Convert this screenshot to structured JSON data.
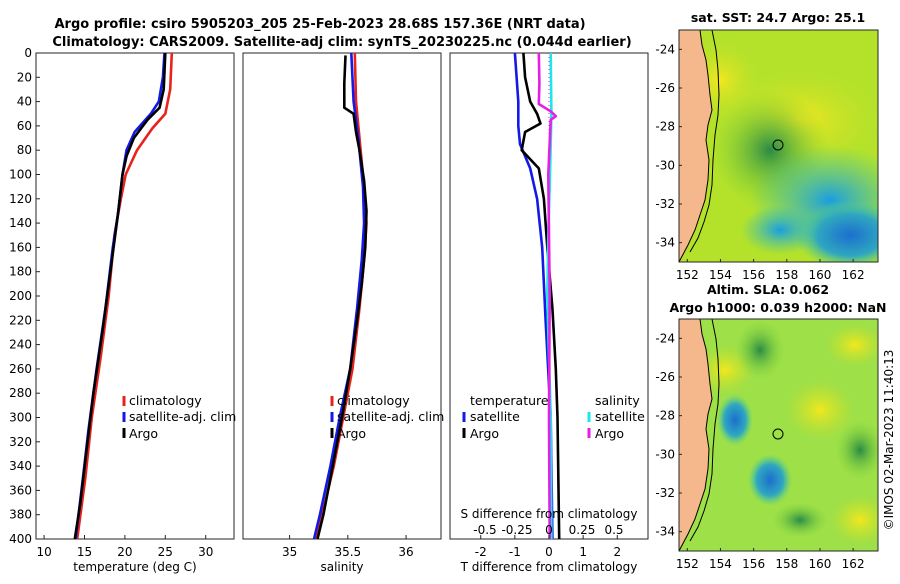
{
  "header": {
    "line1": "Argo profile: csiro 5905203_205 25-Feb-2023 28.68S 157.36E (NRT data)",
    "line2": "Climatology: CARS2009. Satellite-adj clim: synTS_20230225.nc (0.044d earlier)"
  },
  "watermark": "©IMOS 02-Mar-2023 11:40:13",
  "colors": {
    "climatology": "#e8231e",
    "satellite": "#1419e6",
    "argo": "#000000",
    "sat_salinity": "#1ee6e6",
    "argo_salinity": "#e61ee6"
  },
  "chart_data": [
    {
      "type": "line",
      "title": "",
      "xlabel": "temperature (deg C)",
      "ylabel": "depth",
      "xlim": [
        9,
        33.5
      ],
      "ylim": [
        0,
        400
      ],
      "xticks": [
        10,
        15,
        20,
        25,
        30
      ],
      "yticks": [
        0,
        20,
        40,
        60,
        80,
        100,
        120,
        140,
        160,
        180,
        200,
        220,
        240,
        260,
        280,
        300,
        320,
        340,
        360,
        380,
        400
      ],
      "legend": [
        "climatology",
        "satellite-adj. clim",
        "Argo"
      ],
      "series": [
        {
          "name": "climatology",
          "color": "#e8231e",
          "points": [
            [
              25.8,
              0
            ],
            [
              25.6,
              30
            ],
            [
              25,
              50
            ],
            [
              23.4,
              62
            ],
            [
              21.5,
              80
            ],
            [
              20.1,
              100
            ],
            [
              19.5,
              120
            ],
            [
              18.7,
              150
            ],
            [
              18,
              200
            ],
            [
              17,
              250
            ],
            [
              15.9,
              300
            ],
            [
              15.1,
              350
            ],
            [
              14.1,
              400
            ]
          ]
        },
        {
          "name": "satellite-adj. clim",
          "color": "#1419e6",
          "points": [
            [
              24.9,
              0
            ],
            [
              24.7,
              20
            ],
            [
              24.2,
              40
            ],
            [
              23.2,
              50
            ],
            [
              21.2,
              65
            ],
            [
              20.2,
              80
            ],
            [
              19.7,
              100
            ],
            [
              19.2,
              130
            ],
            [
              18.5,
              160
            ],
            [
              17.6,
              210
            ],
            [
              16.5,
              260
            ],
            [
              15.5,
              310
            ],
            [
              14.8,
              350
            ],
            [
              13.9,
              400
            ]
          ]
        },
        {
          "name": "Argo",
          "color": "#000000",
          "points": [
            [
              25,
              0
            ],
            [
              24.8,
              30
            ],
            [
              24.3,
              45
            ],
            [
              22.8,
              55
            ],
            [
              21.1,
              70
            ],
            [
              20.2,
              85
            ],
            [
              19.7,
              100
            ],
            [
              19.1,
              135
            ],
            [
              18.3,
              175
            ],
            [
              17.2,
              230
            ],
            [
              16.1,
              280
            ],
            [
              15.2,
              330
            ],
            [
              14.5,
              370
            ],
            [
              13.8,
              400
            ]
          ]
        }
      ]
    },
    {
      "type": "line",
      "title": "",
      "xlabel": "salinity",
      "ylabel": "depth",
      "xlim": [
        34.6,
        36.3
      ],
      "ylim": [
        0,
        400
      ],
      "xticks": [
        35,
        35.5,
        36
      ],
      "legend": [
        "climatology",
        "satellite-adj. clim",
        "Argo"
      ],
      "series": [
        {
          "name": "climatology",
          "color": "#e8231e",
          "points": [
            [
              35.56,
              0
            ],
            [
              35.57,
              40
            ],
            [
              35.6,
              70
            ],
            [
              35.64,
              110
            ],
            [
              35.66,
              140
            ],
            [
              35.64,
              170
            ],
            [
              35.6,
              210
            ],
            [
              35.54,
              260
            ],
            [
              35.46,
              300
            ],
            [
              35.38,
              340
            ],
            [
              35.28,
              380
            ],
            [
              35.23,
              400
            ]
          ]
        },
        {
          "name": "satellite-adj. clim",
          "color": "#1419e6",
          "points": [
            [
              35.53,
              0
            ],
            [
              35.55,
              40
            ],
            [
              35.59,
              70
            ],
            [
              35.63,
              110
            ],
            [
              35.64,
              140
            ],
            [
              35.62,
              170
            ],
            [
              35.58,
              210
            ],
            [
              35.52,
              260
            ],
            [
              35.43,
              300
            ],
            [
              35.35,
              340
            ],
            [
              35.26,
              380
            ],
            [
              35.21,
              400
            ]
          ]
        },
        {
          "name": "Argo",
          "color": "#000000",
          "points": [
            [
              35.48,
              2
            ],
            [
              35.47,
              25
            ],
            [
              35.47,
              45
            ],
            [
              35.55,
              50
            ],
            [
              35.57,
              65
            ],
            [
              35.6,
              80
            ],
            [
              35.64,
              105
            ],
            [
              35.66,
              130
            ],
            [
              35.65,
              160
            ],
            [
              35.62,
              190
            ],
            [
              35.58,
              220
            ],
            [
              35.52,
              260
            ],
            [
              35.45,
              300
            ],
            [
              35.37,
              340
            ],
            [
              35.29,
              380
            ],
            [
              35.24,
              400
            ]
          ]
        }
      ]
    },
    {
      "type": "line",
      "title": "",
      "xlabel": "T difference from climatology",
      "xlabel2": "S difference from climatology",
      "ylabel": "depth",
      "xlim": [
        -2.9,
        2.9
      ],
      "ylim": [
        0,
        400
      ],
      "xticks": [
        -2,
        -1,
        0,
        1,
        2
      ],
      "top_ticks": [
        "-0.5",
        "-0.25",
        "0",
        "0.25",
        "0.5"
      ],
      "legend_group_titles": [
        "temperature",
        "salinity"
      ],
      "legend": [
        "satellite",
        "Argo",
        "satellite",
        "Argo"
      ],
      "series": [
        {
          "name": "temperature satellite",
          "color": "#1419e6",
          "points": [
            [
              -1,
              0
            ],
            [
              -0.95,
              20
            ],
            [
              -0.9,
              40
            ],
            [
              -0.9,
              60
            ],
            [
              -0.85,
              75
            ],
            [
              -0.55,
              95
            ],
            [
              -0.35,
              120
            ],
            [
              -0.2,
              160
            ],
            [
              -0.1,
              220
            ],
            [
              0.05,
              300
            ],
            [
              0.1,
              400
            ]
          ]
        },
        {
          "name": "temperature Argo",
          "color": "#000000",
          "points": [
            [
              -0.75,
              0
            ],
            [
              -0.7,
              20
            ],
            [
              -0.55,
              40
            ],
            [
              -0.35,
              50
            ],
            [
              -0.25,
              58
            ],
            [
              -0.7,
              65
            ],
            [
              -0.8,
              80
            ],
            [
              -0.3,
              95
            ],
            [
              -0.15,
              120
            ],
            [
              -0.05,
              160
            ],
            [
              0.1,
              210
            ],
            [
              0.2,
              260
            ],
            [
              0.25,
              300
            ],
            [
              0.3,
              400
            ]
          ]
        },
        {
          "name": "salinity satellite",
          "color": "#1ee6e6",
          "points": [
            [
              0.05,
              0
            ],
            [
              0.07,
              50
            ],
            [
              0.03,
              100
            ],
            [
              -0.02,
              150
            ],
            [
              -0.05,
              200
            ],
            [
              0,
              250
            ],
            [
              0.05,
              300
            ],
            [
              0.07,
              400
            ]
          ]
        },
        {
          "name": "salinity Argo",
          "color": "#e61ee6",
          "points": [
            [
              -0.3,
              0
            ],
            [
              -0.28,
              25
            ],
            [
              -0.3,
              42
            ],
            [
              0.05,
              48
            ],
            [
              0.2,
              52
            ],
            [
              0.05,
              55
            ],
            [
              -0.02,
              100
            ],
            [
              0,
              150
            ],
            [
              0.02,
              200
            ],
            [
              0,
              300
            ],
            [
              0.02,
              400
            ]
          ]
        }
      ]
    },
    {
      "type": "heatmap",
      "title": "sat. SST: 24.7 Argo: 25.1",
      "xlim": [
        151.5,
        163.5
      ],
      "ylim": [
        -35,
        -23
      ],
      "xticks": [
        152,
        154,
        156,
        158,
        160,
        162
      ],
      "yticks": [
        -24,
        -26,
        -28,
        -30,
        -32,
        -34
      ],
      "marker": {
        "lon": 157.36,
        "lat": -28.68
      }
    },
    {
      "type": "heatmap",
      "title": "Altim. SLA: 0.062",
      "subtitle": "Argo h1000: 0.039 h2000: NaN",
      "xlim": [
        151.5,
        163.5
      ],
      "ylim": [
        -35,
        -23
      ],
      "xticks": [
        152,
        154,
        156,
        158,
        160,
        162
      ],
      "yticks": [
        -24,
        -26,
        -28,
        -30,
        -32,
        -34
      ],
      "marker": {
        "lon": 157.36,
        "lat": -28.68
      }
    }
  ]
}
